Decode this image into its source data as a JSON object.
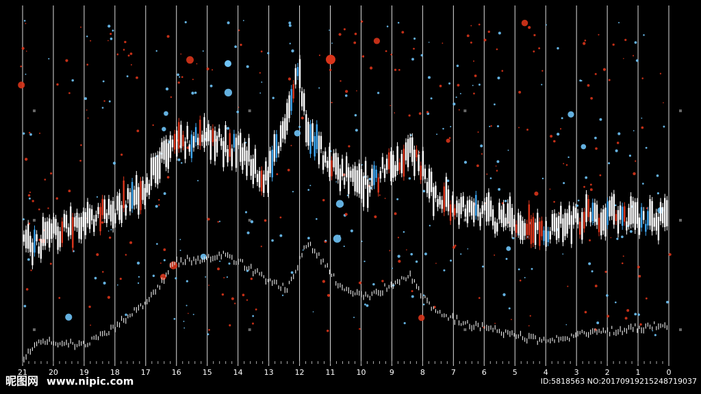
{
  "axis": {
    "labels": [
      "21",
      "20",
      "19",
      "18",
      "17",
      "16",
      "15",
      "14",
      "13",
      "12",
      "11",
      "10",
      "9",
      "8",
      "7",
      "6",
      "5",
      "4",
      "3",
      "2",
      "1",
      "0"
    ]
  },
  "watermark": {
    "logo": "昵图网",
    "url": "www.nipic.com",
    "id": "ID:5818563 NO:20170919215248719037"
  }
}
